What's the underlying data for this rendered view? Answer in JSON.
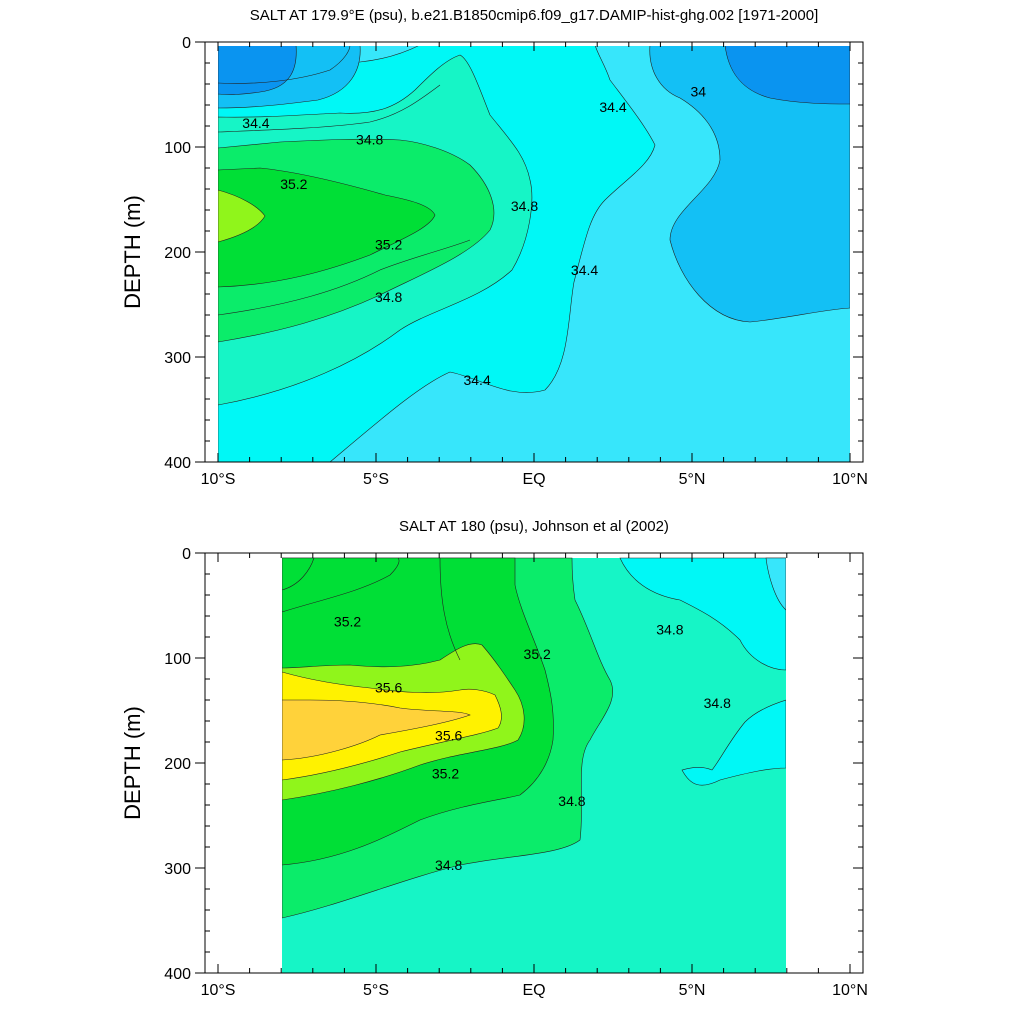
{
  "chart_data": [
    {
      "type": "heatmap",
      "title": "SALT AT 179.9°E (psu), b.e21.B1850cmip6.f09_g17.DAMIP-hist-ghg.002 [1971-2000]",
      "ylabel": "DEPTH (m)",
      "xlabel": "",
      "xlim": [
        -10,
        10
      ],
      "ylim": [
        0,
        400
      ],
      "y_inverted": true,
      "x_ticks": [
        {
          "value": -10,
          "label": "10°S"
        },
        {
          "value": -5,
          "label": "5°S"
        },
        {
          "value": 0,
          "label": "EQ"
        },
        {
          "value": 5,
          "label": "5°N"
        },
        {
          "value": 10,
          "label": "10°N"
        }
      ],
      "y_ticks": [
        {
          "value": 0,
          "label": "0"
        },
        {
          "value": 100,
          "label": "100"
        },
        {
          "value": 200,
          "label": "200"
        },
        {
          "value": 300,
          "label": "300"
        },
        {
          "value": 400,
          "label": "400"
        }
      ],
      "contour_labels": [
        {
          "text": "34.4",
          "lat": -8.8,
          "depth": 77
        },
        {
          "text": "34.8",
          "lat": -5.2,
          "depth": 93
        },
        {
          "text": "35.2",
          "lat": -7.6,
          "depth": 135
        },
        {
          "text": "35.2",
          "lat": -4.6,
          "depth": 193
        },
        {
          "text": "34.8",
          "lat": -4.6,
          "depth": 243
        },
        {
          "text": "34.4",
          "lat": -1.8,
          "depth": 322
        },
        {
          "text": "34.8",
          "lat": -0.3,
          "depth": 156
        },
        {
          "text": "34.4",
          "lat": 1.6,
          "depth": 217
        },
        {
          "text": "34.4",
          "lat": 2.5,
          "depth": 62
        },
        {
          "text": "34",
          "lat": 5.2,
          "depth": 47
        }
      ],
      "colors": {
        "lt34": "#0a94f0",
        "34.0": "#13c0f5",
        "34.4_low": "#37e6fb",
        "34.4": "#00f8f6",
        "34.8": "#16f5c6",
        "35.0": "#0bec6a",
        "35.2": "#00df36",
        "35.4": "#90f51b"
      }
    },
    {
      "type": "heatmap",
      "title": "SALT AT 180 (psu), Johnson et al (2002)",
      "ylabel": "DEPTH (m)",
      "xlabel": "",
      "xlim": [
        -10,
        10
      ],
      "ylim": [
        0,
        400
      ],
      "y_inverted": true,
      "data_lat_range": [
        -8,
        8
      ],
      "x_ticks": [
        {
          "value": -10,
          "label": "10°S"
        },
        {
          "value": -5,
          "label": "5°S"
        },
        {
          "value": 0,
          "label": "EQ"
        },
        {
          "value": 5,
          "label": "5°N"
        },
        {
          "value": 10,
          "label": "10°N"
        }
      ],
      "y_ticks": [
        {
          "value": 0,
          "label": "0"
        },
        {
          "value": 100,
          "label": "100"
        },
        {
          "value": 200,
          "label": "200"
        },
        {
          "value": 300,
          "label": "300"
        },
        {
          "value": 400,
          "label": "400"
        }
      ],
      "contour_labels": [
        {
          "text": "35.2",
          "lat": -5.9,
          "depth": 65
        },
        {
          "text": "35.6",
          "lat": -4.6,
          "depth": 128
        },
        {
          "text": "35.6",
          "lat": -2.7,
          "depth": 174
        },
        {
          "text": "35.2",
          "lat": -2.8,
          "depth": 210
        },
        {
          "text": "34.8",
          "lat": -2.7,
          "depth": 297
        },
        {
          "text": "35.2",
          "lat": 0.1,
          "depth": 96
        },
        {
          "text": "34.8",
          "lat": 1.2,
          "depth": 236
        },
        {
          "text": "34.8",
          "lat": 4.3,
          "depth": 73
        },
        {
          "text": "34.8",
          "lat": 5.8,
          "depth": 143
        }
      ],
      "colors": {
        "34.4": "#00f8f6",
        "34.8": "#16f5c6",
        "35.0": "#0bec6a",
        "35.2": "#00df36",
        "35.4": "#90f51b",
        "35.6": "#fff200",
        "35.8": "#ffd23a"
      }
    }
  ]
}
